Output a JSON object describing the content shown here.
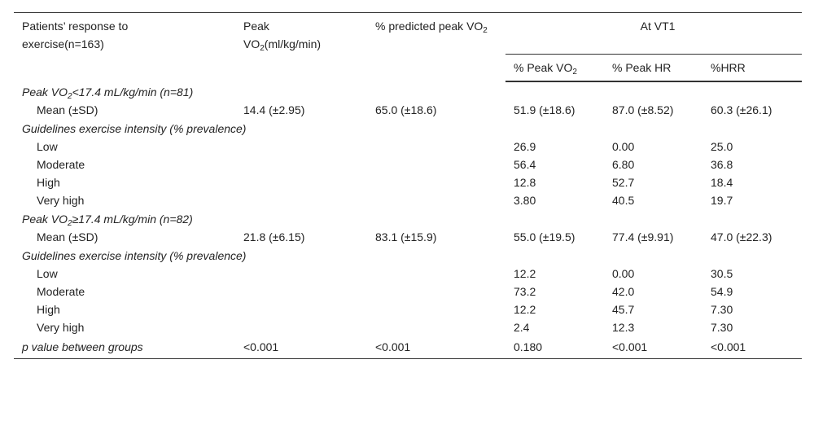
{
  "table": {
    "header": {
      "cells": [
        "Patients’ response to exercise(n=163)",
        [
          "Peak VO",
          {
            "sub": "2"
          },
          "(ml/kg/min)"
        ],
        [
          "% predicted peak VO",
          {
            "sub": "2"
          }
        ]
      ],
      "group": "At VT1",
      "subcells": [
        [
          "% Peak VO",
          {
            "sub": "2"
          }
        ],
        "% Peak HR",
        "%HRR"
      ]
    },
    "rows": [
      {
        "kind": "section",
        "label": [
          "Peak VO",
          {
            "sub": "2"
          },
          "<17.4 mL/kg/min (n=81)"
        ]
      },
      {
        "kind": "data",
        "cells": [
          "Mean (±SD)",
          "14.4 (±2.95)",
          "65.0 (±18.6)",
          "51.9 (±18.6)",
          "87.0 (±8.52)",
          "60.3 (±26.1)"
        ]
      },
      {
        "kind": "section",
        "label": "Guidelines exercise intensity (% prevalence)"
      },
      {
        "kind": "data",
        "cells": [
          "Low",
          null,
          null,
          "26.9",
          "0.00",
          "25.0"
        ]
      },
      {
        "kind": "data",
        "cells": [
          "Moderate",
          null,
          null,
          "56.4",
          "6.80",
          "36.8"
        ]
      },
      {
        "kind": "data",
        "cells": [
          "High",
          null,
          null,
          "12.8",
          "52.7",
          "18.4"
        ]
      },
      {
        "kind": "data",
        "cells": [
          "Very high",
          null,
          null,
          "3.80",
          "40.5",
          "19.7"
        ]
      },
      {
        "kind": "section",
        "label": [
          "Peak VO",
          {
            "sub": "2"
          },
          "≥17.4 mL/kg/min (n=82)"
        ]
      },
      {
        "kind": "data",
        "cells": [
          "Mean (±SD)",
          "21.8 (±6.15)",
          "83.1 (±15.9)",
          "55.0 (±19.5)",
          "77.4 (±9.91)",
          "47.0 (±22.3)"
        ]
      },
      {
        "kind": "section",
        "label": "Guidelines exercise intensity (% prevalence)"
      },
      {
        "kind": "data",
        "cells": [
          "Low",
          null,
          null,
          "12.2",
          "0.00",
          "30.5"
        ]
      },
      {
        "kind": "data",
        "cells": [
          "Moderate",
          null,
          null,
          "73.2",
          "42.0",
          "54.9"
        ]
      },
      {
        "kind": "data",
        "cells": [
          "High",
          null,
          null,
          "12.2",
          "45.7",
          "7.30"
        ]
      },
      {
        "kind": "data",
        "cells": [
          "Very high",
          null,
          null,
          "2.4",
          "12.3",
          "7.30"
        ]
      },
      {
        "kind": "summary",
        "cells": [
          "p value between groups",
          "<0.001",
          "<0.001",
          "0.180",
          "<0.001",
          "<0.001"
        ]
      }
    ]
  }
}
